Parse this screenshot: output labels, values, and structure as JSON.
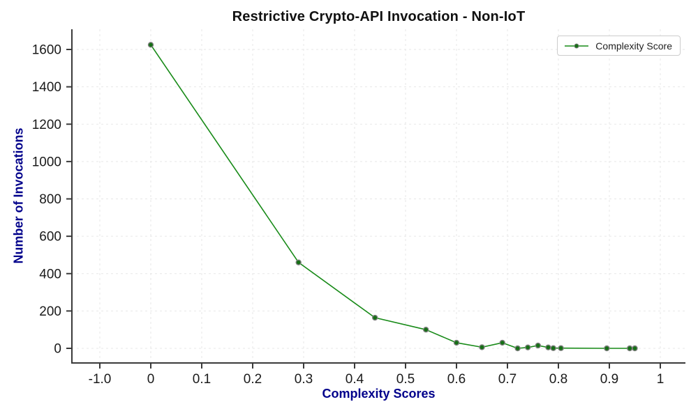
{
  "figure": {
    "background": "#ffffff"
  },
  "chart_data": {
    "type": "line",
    "title": "Restrictive Crypto-API Invocation - Non-IoT",
    "xlabel": "Complexity Scores",
    "ylabel": "Number of Invocations",
    "grid": true,
    "legend_position": "top-right",
    "x_tick_labels": [
      "-1.0",
      "0",
      "0.1",
      "0.2",
      "0.3",
      "0.4",
      "0.5",
      "0.6",
      "0.7",
      "0.8",
      "0.9",
      "1"
    ],
    "y_ticks": [
      0,
      200,
      400,
      600,
      800,
      1000,
      1200,
      1400,
      1600
    ],
    "ylim": [
      -80,
      1710
    ],
    "xlim": [
      -0.155,
      1.05
    ],
    "series": [
      {
        "name": "Complexity Score",
        "x": [
          0.0,
          0.29,
          0.44,
          0.54,
          0.6,
          0.65,
          0.69,
          0.72,
          0.74,
          0.76,
          0.78,
          0.79,
          0.805,
          0.895,
          0.94,
          0.95
        ],
        "y": [
          1625,
          460,
          164,
          100,
          30,
          6,
          30,
          0,
          5,
          15,
          5,
          1,
          1,
          0,
          0,
          0
        ]
      }
    ],
    "colors": {
      "line": "#178a17",
      "marker_fill": "#156f15",
      "marker_edge": "#7f7f7f",
      "axis_title": "#00008b",
      "tick_label": "#1a1a1a",
      "spine": "#3a3a3a",
      "grid": "#e7e7e7",
      "title": "#111111",
      "legend_border": "#cccccc"
    }
  }
}
